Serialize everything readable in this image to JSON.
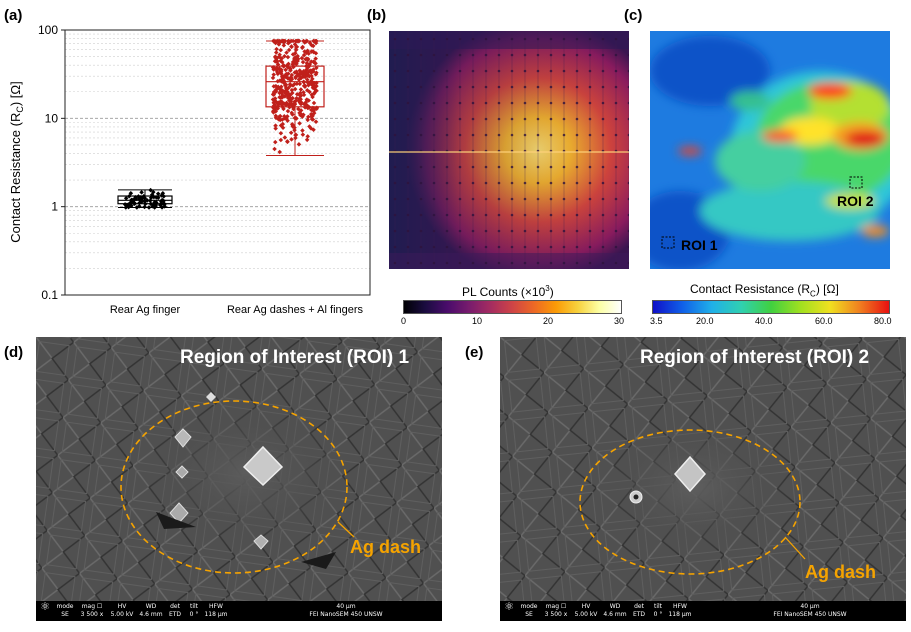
{
  "panels": {
    "a": "(a)",
    "b": "(b)",
    "c": "(c)",
    "d": "(d)",
    "e": "(e)"
  },
  "chart_data": {
    "type": "box",
    "ylabel_main": "Contact Resistance (R",
    "ylabel_sub": "C",
    "ylabel_end": ") [Ω]",
    "yscale": "log",
    "ylim": [
      0.1,
      100
    ],
    "yticks": [
      "0.1",
      "1",
      "10",
      "100"
    ],
    "categories": [
      "Rear Ag finger",
      "Rear Ag dashes + Al fingers"
    ],
    "series": [
      {
        "name": "Rear Ag finger",
        "color": "#000000",
        "whisker_low": 0.98,
        "q1": 1.08,
        "median": 1.18,
        "q3": 1.32,
        "whisker_high": 1.55,
        "points_range": [
          0.98,
          1.7
        ]
      },
      {
        "name": "Rear Ag dashes + Al fingers",
        "color": "#c0201b",
        "whisker_low": 3.8,
        "q1": 13.5,
        "median": 26,
        "q3": 39,
        "whisker_high": 75,
        "points_range": [
          3.8,
          75
        ]
      }
    ]
  },
  "colorbar_pl": {
    "title": "PL Counts (×10",
    "title_sup": "3",
    "title_end": ")",
    "ticks": [
      "0",
      "10",
      "20",
      "30"
    ]
  },
  "colorbar_rc": {
    "title": "Contact Resistance (R",
    "title_sub": "C",
    "title_end": ") [Ω]",
    "ticks": [
      "3.5",
      "20.0",
      "40.0",
      "60.0",
      "80.0"
    ]
  },
  "roi_map": {
    "roi1": "ROI 1",
    "roi2": "ROI 2"
  },
  "sem": [
    {
      "title": "Region of Interest (ROI) 1",
      "ag_label": "Ag dash"
    },
    {
      "title": "Region of Interest (ROI) 2",
      "ag_label": "Ag dash"
    }
  ],
  "sem_bar": {
    "mode_h": "mode",
    "mode_v": "SE",
    "mag_h": "mag ☐",
    "mag_v": "3 500 x",
    "hv_h": "HV",
    "hv_v": "5.00 kV",
    "wd_h": "WD",
    "wd_v": "4.6 mm",
    "det_h": "det",
    "det_v": "ETD",
    "tilt_h": "tilt",
    "tilt_v": "0 °",
    "hfw_h": "HFW",
    "hfw_v": "118 μm",
    "scale": "40 μm",
    "instrument": "FEI NanoSEM 450 UNSW"
  },
  "colors": {
    "box_black": "#000000",
    "box_red": "#c0201b",
    "ag_orange": "#f5a300"
  }
}
